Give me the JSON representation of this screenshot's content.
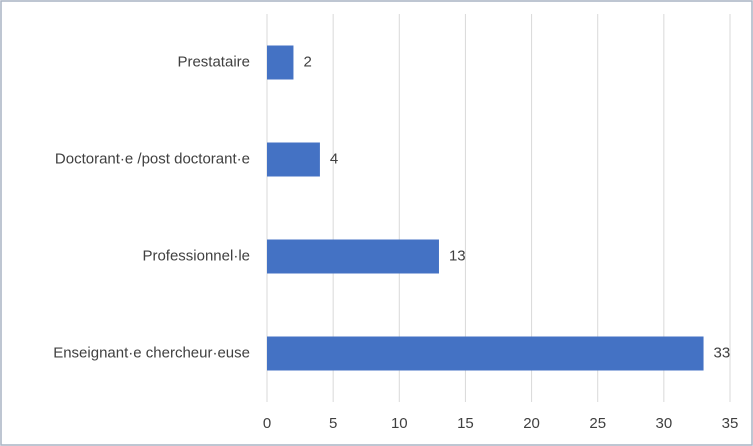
{
  "chart_data": {
    "type": "bar",
    "orientation": "horizontal",
    "categories": [
      "Prestataire",
      "Doctorant·e /post doctorant·e",
      "Professionnel·le",
      "Enseignant·e chercheur·euse"
    ],
    "values": [
      2,
      4,
      13,
      33
    ],
    "color": "#4472c4",
    "xlim": [
      0,
      35
    ],
    "xticks": [
      0,
      5,
      10,
      15,
      20,
      25,
      30,
      35
    ],
    "grid": true
  }
}
